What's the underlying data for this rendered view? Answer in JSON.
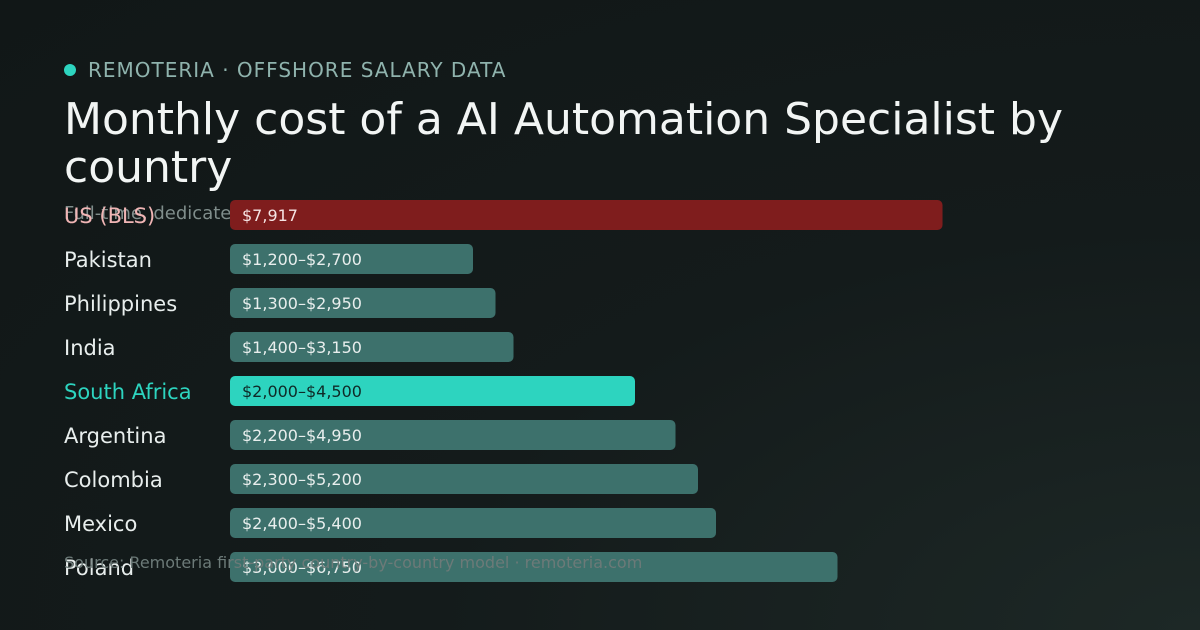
{
  "brand": {
    "name": "REMOTERIA · OFFSHORE SALARY DATA"
  },
  "header": {
    "title": "Monthly cost of a AI Automation Specialist by country",
    "subtitle": "Full-time, dedicated"
  },
  "footer": {
    "source": "Source: Remoteria first-party country-by-country model · remoteria.com"
  },
  "colors": {
    "accent": "#2dd4bf",
    "us_bar": "#7f1d1d",
    "default_bar": "#3d716c",
    "highlight_bar": "#2dd4bf"
  },
  "chart_data": {
    "type": "bar",
    "orientation": "horizontal",
    "title": "Monthly cost of a AI Automation Specialist by country",
    "xlim": [
      0,
      8000
    ],
    "grid": false,
    "categories": [
      "US (BLS)",
      "Pakistan",
      "Philippines",
      "India",
      "South Africa",
      "Argentina",
      "Colombia",
      "Mexico",
      "Poland"
    ],
    "values": [
      7917,
      2700,
      2950,
      3150,
      4500,
      4950,
      5200,
      5400,
      6750
    ],
    "low_values": [
      null,
      1200,
      1300,
      1400,
      2000,
      2200,
      2300,
      2400,
      3000
    ],
    "labels": [
      "$7,917",
      "$1,200–$2,700",
      "$1,300–$2,950",
      "$1,400–$3,150",
      "$2,000–$4,500",
      "$2,200–$4,950",
      "$2,300–$5,200",
      "$2,400–$5,400",
      "$3,000–$6,750"
    ],
    "highlight": [
      "benchmark",
      "normal",
      "normal",
      "normal",
      "selected",
      "normal",
      "normal",
      "normal",
      "normal"
    ]
  }
}
